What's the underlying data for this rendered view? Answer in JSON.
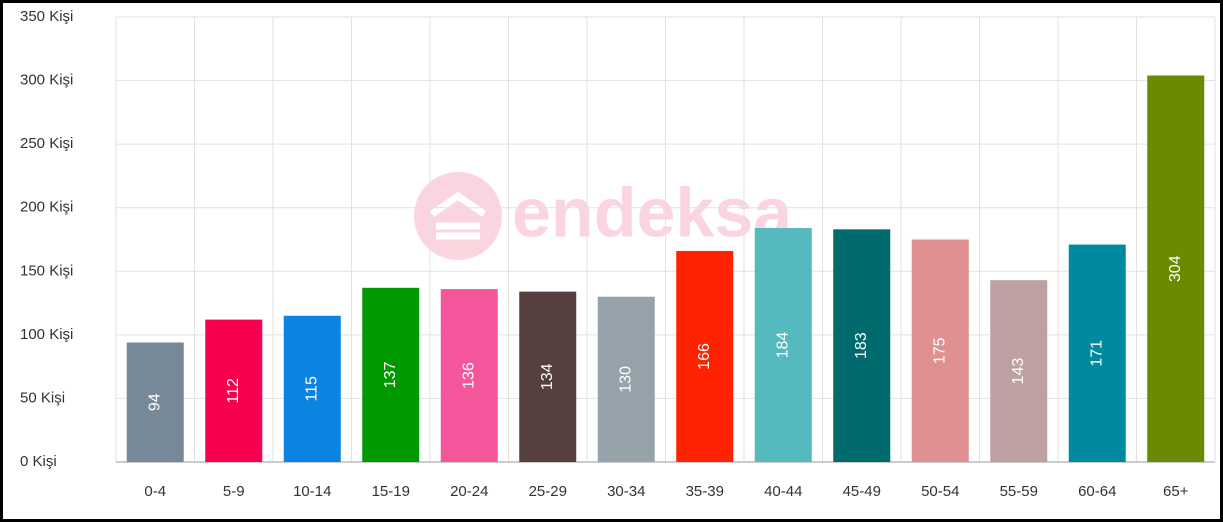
{
  "chart_data": {
    "type": "bar",
    "watermark": "endeksa",
    "categories": [
      "0-4",
      "5-9",
      "10-14",
      "15-19",
      "20-24",
      "25-29",
      "30-34",
      "35-39",
      "40-44",
      "45-49",
      "50-54",
      "55-59",
      "60-64",
      "65+"
    ],
    "values": [
      94,
      112,
      115,
      137,
      136,
      134,
      130,
      166,
      184,
      183,
      175,
      143,
      171,
      304
    ],
    "colors": [
      "#778899",
      "#f7004f",
      "#0a84e0",
      "#009a00",
      "#f5559a",
      "#553f3f",
      "#97a3ab",
      "#ff2200",
      "#55b9c0",
      "#006b6e",
      "#e09090",
      "#bfa0a0",
      "#008aa0",
      "#6a8a00"
    ],
    "ylim": [
      0,
      350
    ],
    "yticks": [
      {
        "value": 0,
        "label": "0 Kişi"
      },
      {
        "value": 50,
        "label": "50 Kişi"
      },
      {
        "value": 100,
        "label": "100 Kişi"
      },
      {
        "value": 150,
        "label": "150 Kişi"
      },
      {
        "value": 200,
        "label": "200 Kişi"
      },
      {
        "value": 250,
        "label": "250 Kişi"
      },
      {
        "value": 300,
        "label": "300 Kişi"
      },
      {
        "value": 350,
        "label": "350 Kişi"
      }
    ],
    "grid": true
  }
}
